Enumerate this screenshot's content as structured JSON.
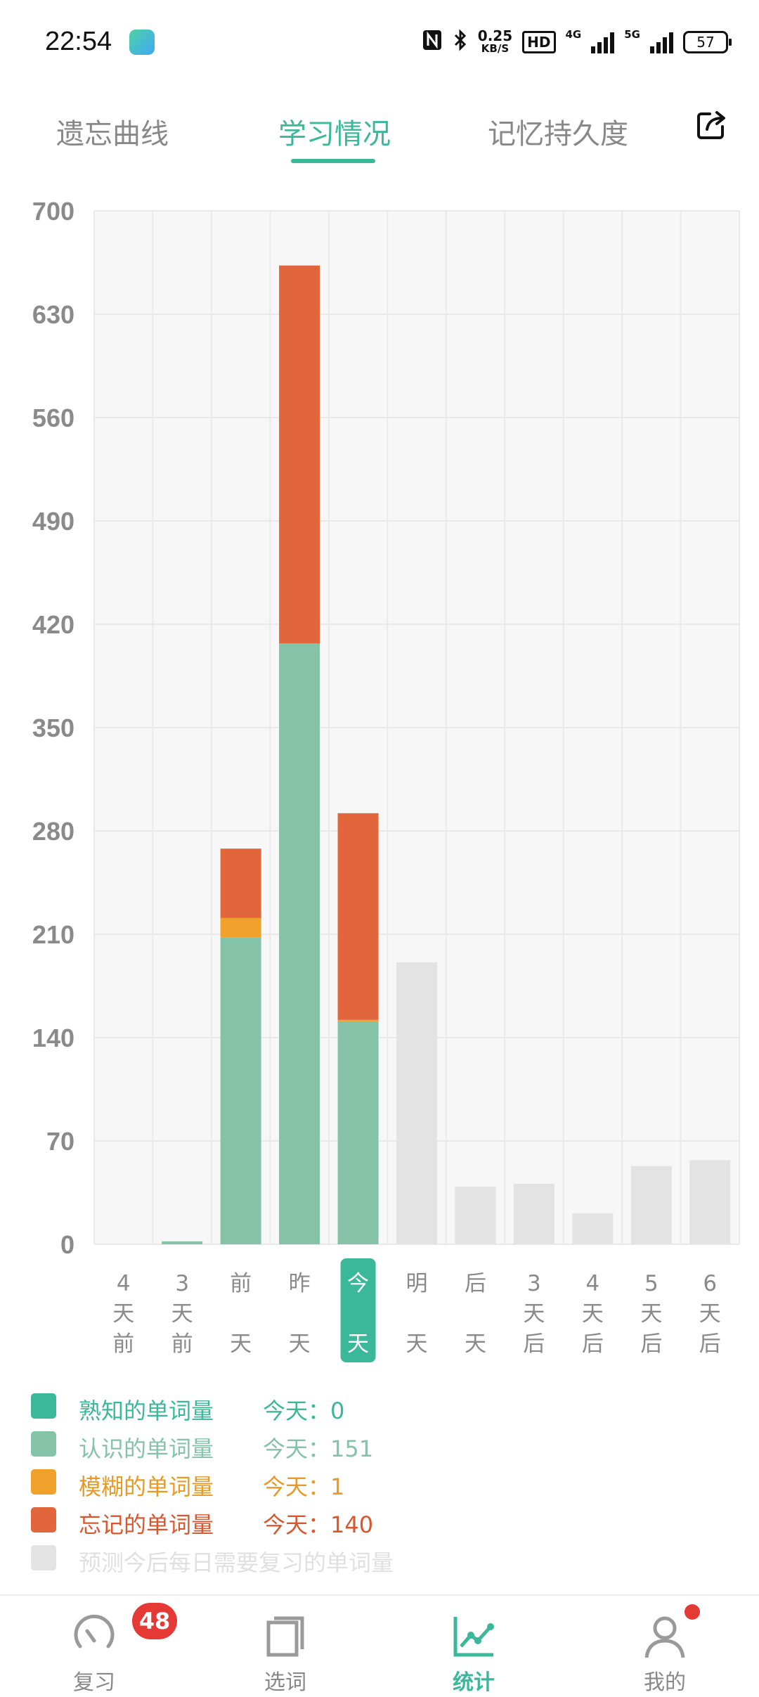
{
  "status_bar": {
    "time": "22:54",
    "speed_value": "0.25",
    "speed_unit": "KB/S",
    "hd_label": "HD",
    "net_4g": "4G",
    "net_5g": "5G",
    "battery": "57",
    "icons": [
      "nfc-icon",
      "bluetooth-icon",
      "hd-icon",
      "signal-4g-icon",
      "signal-5g-icon",
      "battery-icon"
    ]
  },
  "tabs": [
    {
      "label": "遗忘曲线",
      "active": false
    },
    {
      "label": "学习情况",
      "active": true
    },
    {
      "label": "记忆持久度",
      "active": false
    }
  ],
  "share_icon": "share-icon",
  "chart_data": {
    "type": "bar",
    "stacked": true,
    "ylim": [
      0,
      700
    ],
    "yticks": [
      0,
      70,
      140,
      210,
      280,
      350,
      420,
      490,
      560,
      630,
      700
    ],
    "categories": [
      "4天前",
      "3天前",
      "前天",
      "昨天",
      "今天",
      "明天",
      "后天",
      "3天后",
      "4天后",
      "5天后",
      "6天后"
    ],
    "selected_category": "今天",
    "series": [
      {
        "name": "熟知的单词量",
        "color": "#3bb89a",
        "values": [
          0,
          0,
          0,
          0,
          0,
          0,
          0,
          0,
          0,
          0,
          0
        ]
      },
      {
        "name": "认识的单词量",
        "color": "#84c3a8",
        "values": [
          0,
          2,
          208,
          407,
          151,
          0,
          0,
          0,
          0,
          0,
          0
        ]
      },
      {
        "name": "模糊的单词量",
        "color": "#f0a12c",
        "values": [
          0,
          0,
          13,
          0,
          1,
          0,
          0,
          0,
          0,
          0,
          0
        ]
      },
      {
        "name": "忘记的单词量",
        "color": "#e2663c",
        "values": [
          0,
          0,
          47,
          256,
          140,
          0,
          0,
          0,
          0,
          0,
          0
        ]
      },
      {
        "name": "预测今后每日需要复习的单词量",
        "color": "#e3e3e3",
        "values": [
          0,
          0,
          0,
          0,
          0,
          191,
          39,
          41,
          21,
          53,
          57
        ]
      }
    ],
    "grid": true
  },
  "legend": [
    {
      "label": "熟知的单词量",
      "today": "今天：0",
      "color": "#3bb89a",
      "text_color": "#3bb89a"
    },
    {
      "label": "认识的单词量",
      "today": "今天：151",
      "color": "#84c3a8",
      "text_color": "#84c3a8"
    },
    {
      "label": "模糊的单词量",
      "today": "今天：1",
      "color": "#f0a12c",
      "text_color": "#e89a24"
    },
    {
      "label": "忘记的单词量",
      "today": "今天：140",
      "color": "#e2663c",
      "text_color": "#d9572f"
    },
    {
      "label": "预测今后每日需要复习的单词量",
      "today": "",
      "color": "#e3e3e3",
      "text_color": "#e0e0e0"
    }
  ],
  "nav": {
    "items": [
      {
        "label": "复习",
        "icon": "speedometer-icon",
        "badge": "48"
      },
      {
        "label": "选词",
        "icon": "cards-icon"
      },
      {
        "label": "统计",
        "icon": "line-chart-icon",
        "active": true
      },
      {
        "label": "我的",
        "icon": "person-icon"
      }
    ]
  }
}
